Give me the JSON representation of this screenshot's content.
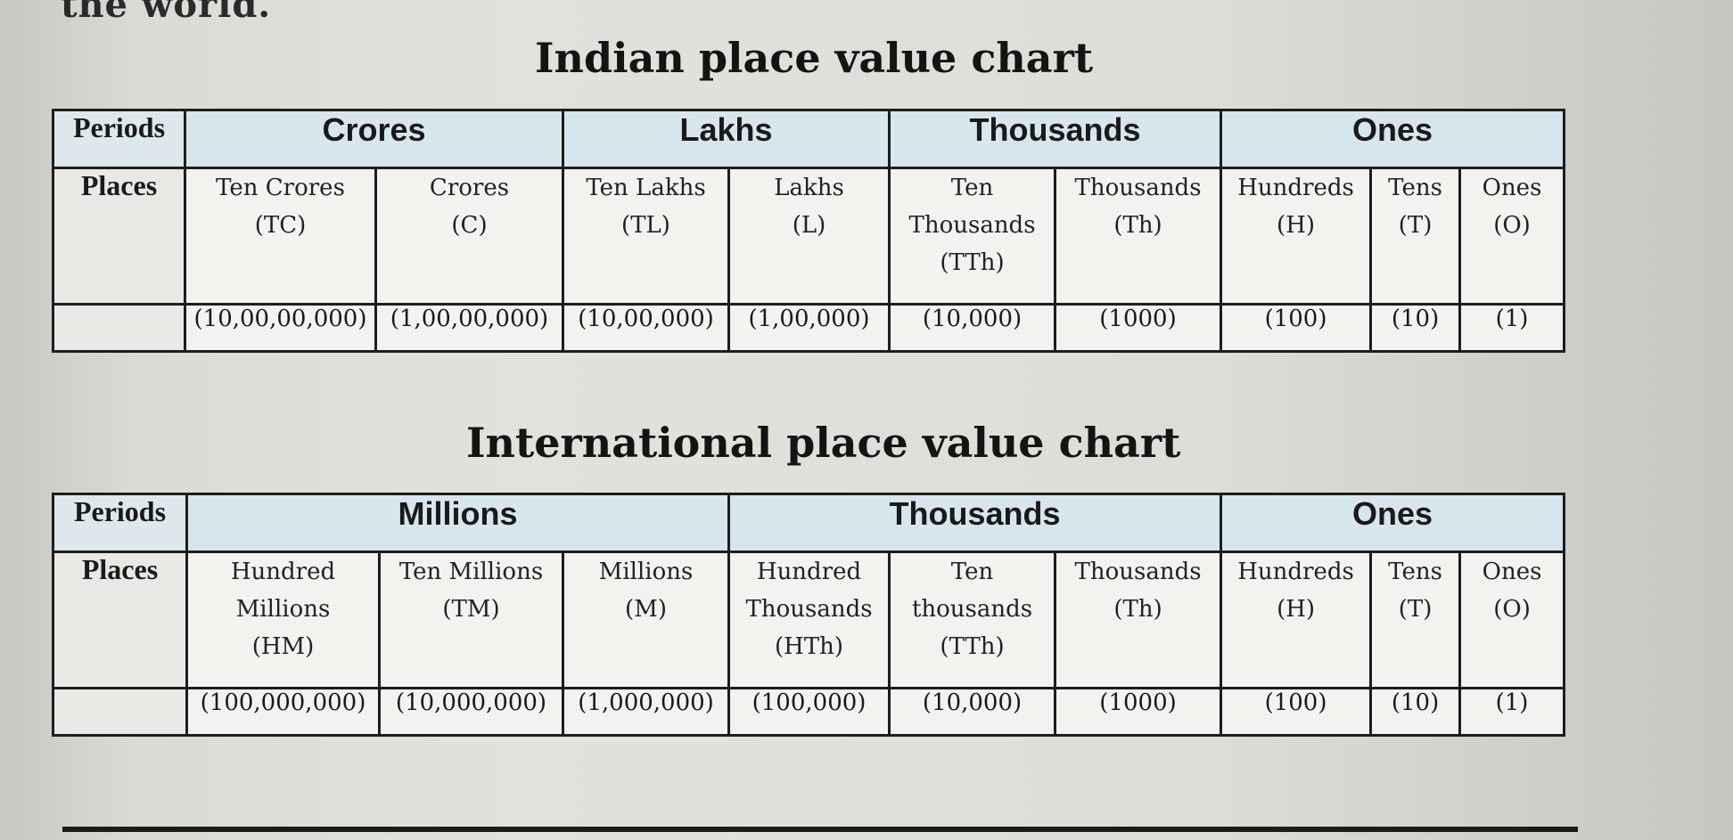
{
  "top_fragment": "the world.",
  "indian": {
    "title": "Indian place value chart",
    "periods_label": "Periods",
    "places_label": "Places",
    "periods": [
      {
        "name": "Crores",
        "span": 2
      },
      {
        "name": "Lakhs",
        "span": 2
      },
      {
        "name": "Thousands",
        "span": 2
      },
      {
        "name": "Ones",
        "span": 3
      }
    ],
    "places": [
      {
        "name": "Ten Crores",
        "abbr": "(TC)",
        "value": "(10,00,00,000)"
      },
      {
        "name": "Crores",
        "abbr": "(C)",
        "value": "(1,00,00,000)"
      },
      {
        "name": "Ten Lakhs",
        "abbr": "(TL)",
        "value": "(10,00,000)"
      },
      {
        "name": "Lakhs",
        "abbr": "(L)",
        "value": "(1,00,000)"
      },
      {
        "name": "Ten Thousands",
        "abbr": "(TTh)",
        "value": "(10,000)"
      },
      {
        "name": "Thousands",
        "abbr": "(Th)",
        "value": "(1000)"
      },
      {
        "name": "Hundreds",
        "abbr": "(H)",
        "value": "(100)"
      },
      {
        "name": "Tens",
        "abbr": "(T)",
        "value": "(10)"
      },
      {
        "name": "Ones",
        "abbr": "(O)",
        "value": "(1)"
      }
    ]
  },
  "international": {
    "title": "International place value chart",
    "periods_label": "Periods",
    "places_label": "Places",
    "periods": [
      {
        "name": "Millions",
        "span": 3
      },
      {
        "name": "Thousands",
        "span": 3
      },
      {
        "name": "Ones",
        "span": 3
      }
    ],
    "places": [
      {
        "name": "Hundred Millions",
        "abbr": "(HM)",
        "value": "(100,000,000)"
      },
      {
        "name": "Ten Millions",
        "abbr": "(TM)",
        "value": "(10,000,000)"
      },
      {
        "name": "Millions",
        "abbr": "(M)",
        "value": "(1,000,000)"
      },
      {
        "name": "Hundred Thousands",
        "abbr": "(HTh)",
        "value": "(100,000)"
      },
      {
        "name": "Ten thousands",
        "abbr": "(TTh)",
        "value": "(10,000)"
      },
      {
        "name": "Thousands",
        "abbr": "(Th)",
        "value": "(1000)"
      },
      {
        "name": "Hundreds",
        "abbr": "(H)",
        "value": "(100)"
      },
      {
        "name": "Tens",
        "abbr": "(T)",
        "value": "(10)"
      },
      {
        "name": "Ones",
        "abbr": "(O)",
        "value": "(1)"
      }
    ]
  }
}
